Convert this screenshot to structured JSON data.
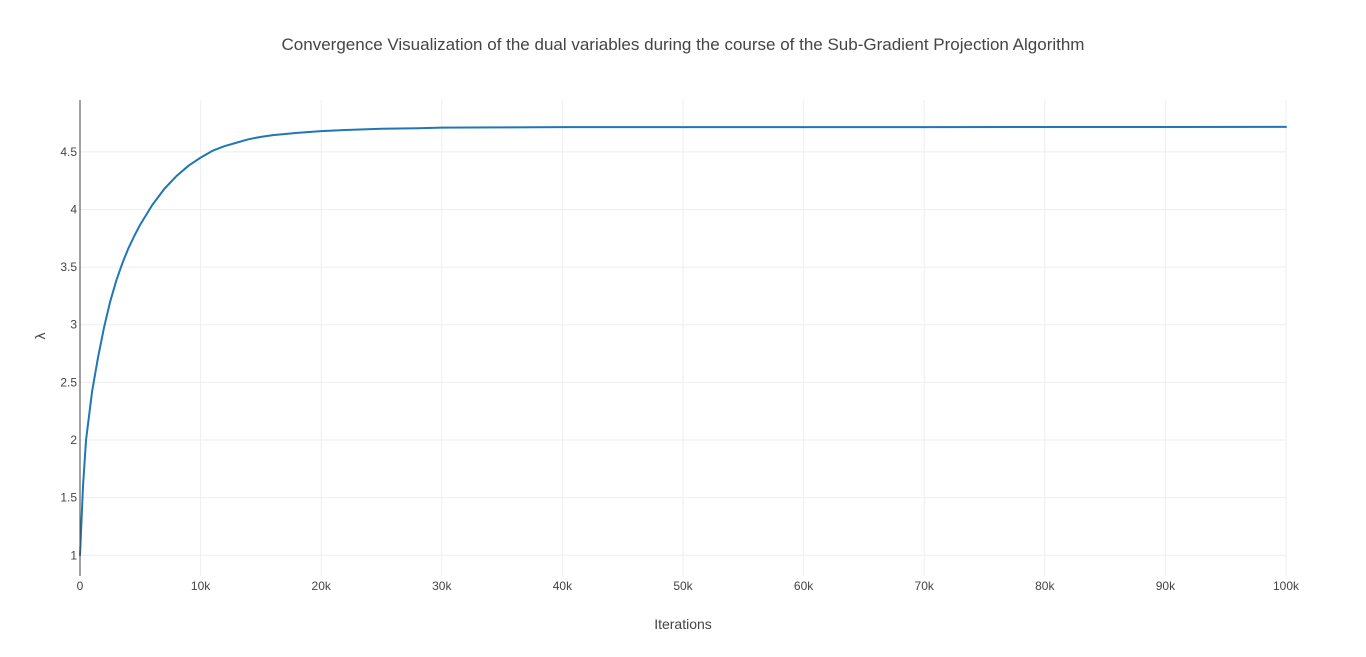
{
  "chart_data": {
    "type": "line",
    "title": "Convergence Visualization of the dual variables during the course of the Sub-Gradient Projection Algorithm",
    "xlabel": "Iterations",
    "ylabel": "λ",
    "xlim": [
      0,
      100000
    ],
    "ylim": [
      0.82,
      4.95
    ],
    "grid": true,
    "x_ticks": [
      0,
      10000,
      20000,
      30000,
      40000,
      50000,
      60000,
      70000,
      80000,
      90000,
      100000
    ],
    "x_tick_labels": [
      "0",
      "10k",
      "20k",
      "30k",
      "40k",
      "50k",
      "60k",
      "70k",
      "80k",
      "90k",
      "100k"
    ],
    "y_ticks": [
      1,
      1.5,
      2,
      2.5,
      3,
      3.5,
      4,
      4.5
    ],
    "y_tick_labels": [
      "1",
      "1.5",
      "2",
      "2.5",
      "3",
      "3.5",
      "4",
      "4.5"
    ],
    "line_color": "#1f77b4",
    "series": [
      {
        "x": [
          0,
          250,
          500,
          1000,
          1500,
          2000,
          2500,
          3000,
          3500,
          4000,
          4500,
          5000,
          6000,
          7000,
          8000,
          9000,
          10000,
          11000,
          12000,
          13000,
          14000,
          15000,
          16000,
          17000,
          18000,
          20000,
          22000,
          25000,
          28000,
          30000,
          35000,
          40000,
          50000,
          60000,
          70000,
          80000,
          90000,
          100000
        ],
        "y": [
          1.0,
          1.6,
          2.0,
          2.42,
          2.72,
          2.98,
          3.2,
          3.38,
          3.53,
          3.66,
          3.77,
          3.87,
          4.04,
          4.18,
          4.29,
          4.38,
          4.45,
          4.51,
          4.55,
          4.58,
          4.61,
          4.63,
          4.645,
          4.655,
          4.665,
          4.68,
          4.69,
          4.7,
          4.705,
          4.71,
          4.712,
          4.715,
          4.715,
          4.715,
          4.715,
          4.716,
          4.716,
          4.717
        ]
      }
    ]
  }
}
